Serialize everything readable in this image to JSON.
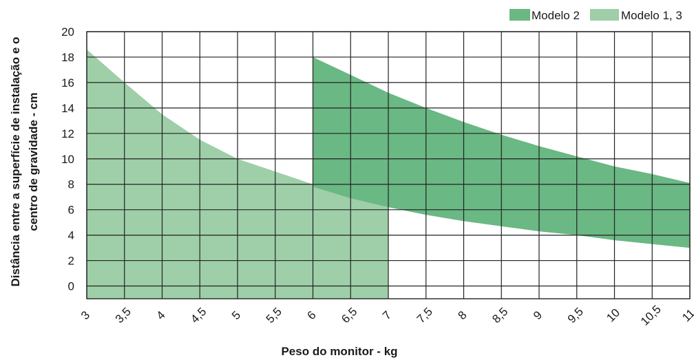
{
  "chart_data": {
    "type": "area",
    "title": "",
    "xlabel": "Peso do monitor - kg",
    "ylabel_lines": [
      "Distância entre a superfície de instalação e o",
      "centro de gravidade - cm"
    ],
    "xlim": [
      3,
      11
    ],
    "ylim": [
      -1,
      20
    ],
    "x_ticks": [
      3,
      3.5,
      4,
      4.5,
      5,
      5.5,
      6,
      6.5,
      7,
      7.5,
      8,
      8.5,
      9,
      9.5,
      10,
      10.5,
      11
    ],
    "x_tick_labels": [
      "3",
      "3,5",
      "4",
      "4,5",
      "5",
      "5,5",
      "6",
      "6,5",
      "7",
      "7,5",
      "8",
      "8,5",
      "9",
      "9,5",
      "10",
      "10,5",
      "11"
    ],
    "y_ticks": [
      0,
      2,
      4,
      6,
      8,
      10,
      12,
      14,
      16,
      18,
      20
    ],
    "y_tick_labels": [
      "0",
      "2",
      "4",
      "6",
      "8",
      "10",
      "12",
      "14",
      "16",
      "18",
      "20"
    ],
    "grid": true,
    "legend_position": "top-right",
    "series": [
      {
        "name": "Modelo 1, 3",
        "color": "#9ecfa8",
        "x": [
          3,
          3.5,
          4,
          4.5,
          5,
          5.5,
          6,
          6.5,
          7
        ],
        "upper": [
          18.6,
          16.0,
          13.5,
          11.5,
          10.0,
          9.0,
          8.0,
          7.0,
          6.2
        ],
        "lower": [
          -1,
          -1,
          -1,
          -1,
          -1,
          -1,
          -1,
          -1,
          -1
        ]
      },
      {
        "name": "Modelo 2",
        "color": "#6ab884",
        "x": [
          6,
          6.5,
          7,
          7.5,
          8,
          8.5,
          9,
          9.5,
          10,
          10.5,
          11
        ],
        "upper": [
          18.0,
          16.6,
          15.2,
          14.0,
          12.9,
          11.9,
          11.0,
          10.2,
          9.4,
          8.8,
          8.1
        ],
        "lower": [
          7.8,
          6.9,
          6.2,
          5.6,
          5.1,
          4.7,
          4.3,
          4.0,
          3.6,
          3.3,
          3.0
        ]
      }
    ]
  }
}
